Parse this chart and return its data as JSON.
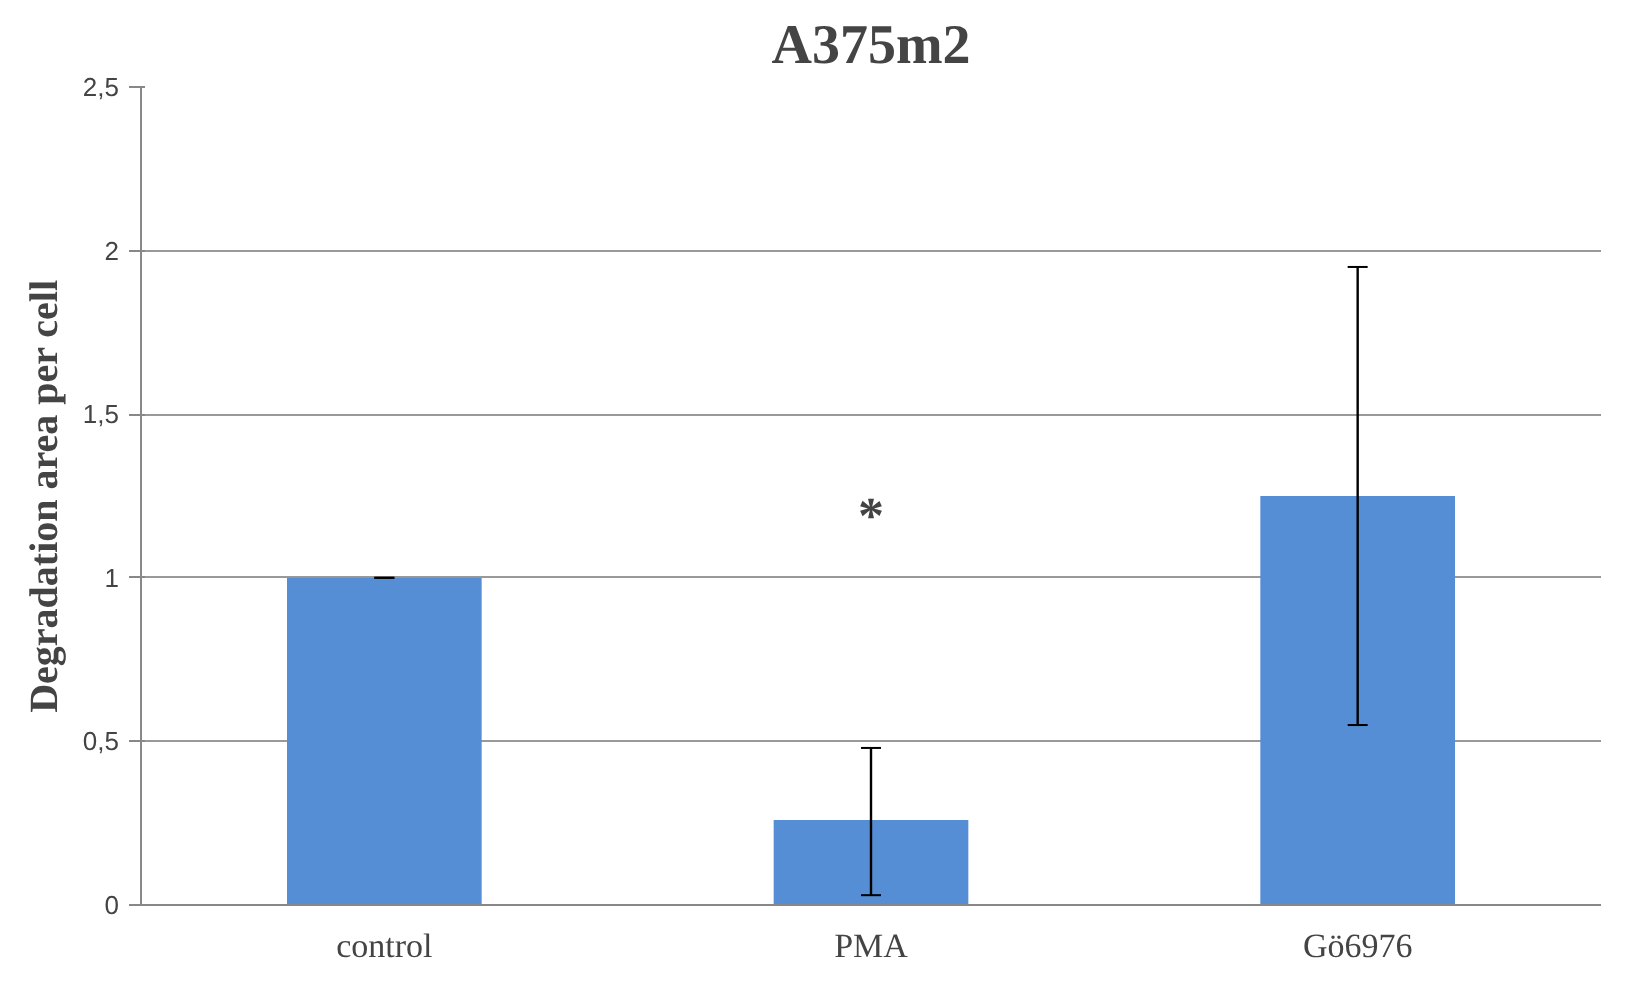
{
  "chart_data": {
    "type": "bar",
    "title": "A375m2",
    "ylabel": "Degradation area per cell",
    "categories": [
      "control",
      "PMA",
      "Gö6976"
    ],
    "values": [
      1,
      0.26,
      1.25
    ],
    "errors": [
      0,
      [
        0.03,
        0.48
      ],
      [
        0.55,
        1.95
      ]
    ],
    "color": "#558ed5",
    "ylim": [
      0,
      2.5
    ],
    "yticks": [
      0,
      {
        "value": 0.5,
        "label": "0,5"
      },
      1,
      {
        "value": 1.5,
        "label": "1,5"
      },
      2,
      {
        "value": 2.5,
        "label": "2,5"
      }
    ],
    "grid": "y",
    "annotations": [
      "*"
    ]
  }
}
